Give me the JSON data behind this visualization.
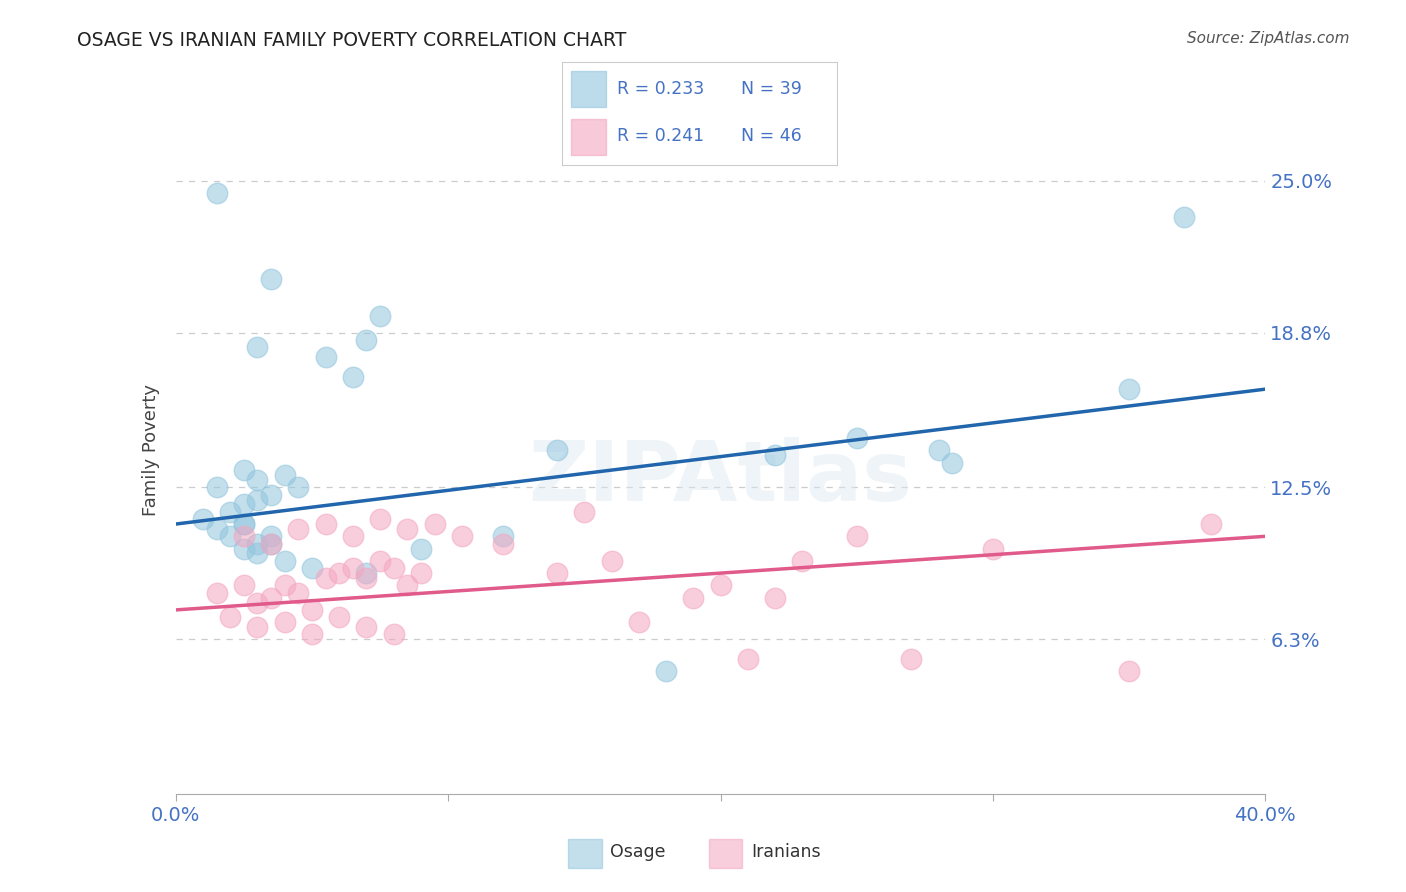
{
  "title": "OSAGE VS IRANIAN FAMILY POVERTY CORRELATION CHART",
  "source": "Source: ZipAtlas.com",
  "ylabel": "Family Poverty",
  "yticks": [
    6.3,
    12.5,
    18.8,
    25.0
  ],
  "ytick_labels": [
    "6.3%",
    "12.5%",
    "18.8%",
    "25.0%"
  ],
  "xlim": [
    0.0,
    40.0
  ],
  "ylim": [
    0.0,
    28.0
  ],
  "legend_r1": "R = 0.233",
  "legend_n1": "N = 39",
  "legend_r2": "R = 0.241",
  "legend_n2": "N = 46",
  "legend_label1": "Osage",
  "legend_label2": "Iranians",
  "blue_color": "#92c5de",
  "pink_color": "#f4a6c0",
  "blue_line_color": "#2166ac",
  "pink_line_color": "#e05a8a",
  "background": "#ffffff",
  "osage_x": [
    1.5,
    3.5,
    7.5,
    3.0,
    5.5,
    7.0,
    6.5,
    2.5,
    3.0,
    4.0,
    4.5,
    3.5,
    2.5,
    3.0,
    1.5,
    2.0,
    2.5,
    1.0,
    1.5,
    2.0,
    2.5,
    3.0,
    3.5,
    2.5,
    3.0,
    3.5,
    4.0,
    5.0,
    28.0,
    28.5,
    35.0,
    37.0,
    22.0,
    25.0,
    14.0,
    7.0,
    9.0,
    12.0,
    18.0
  ],
  "osage_y": [
    24.5,
    21.0,
    19.5,
    18.2,
    17.8,
    18.5,
    17.0,
    13.2,
    12.8,
    13.0,
    12.5,
    12.2,
    11.8,
    12.0,
    12.5,
    11.5,
    11.0,
    11.2,
    10.8,
    10.5,
    11.0,
    10.2,
    10.5,
    10.0,
    9.8,
    10.2,
    9.5,
    9.2,
    14.0,
    13.5,
    16.5,
    23.5,
    13.8,
    14.5,
    14.0,
    9.0,
    10.0,
    10.5,
    5.0
  ],
  "iranian_x": [
    1.5,
    2.5,
    3.0,
    3.5,
    4.0,
    4.5,
    5.0,
    5.5,
    6.0,
    6.5,
    7.0,
    7.5,
    8.0,
    8.5,
    9.0,
    2.0,
    3.0,
    4.0,
    5.0,
    6.0,
    7.0,
    8.0,
    2.5,
    3.5,
    4.5,
    5.5,
    6.5,
    7.5,
    8.5,
    9.5,
    10.5,
    12.0,
    15.0,
    20.0,
    22.0,
    16.0,
    19.0,
    23.0,
    25.0,
    30.0,
    35.0,
    38.0,
    14.0,
    17.0,
    21.0,
    27.0
  ],
  "iranian_y": [
    8.2,
    8.5,
    7.8,
    8.0,
    8.5,
    8.2,
    7.5,
    8.8,
    9.0,
    9.2,
    8.8,
    9.5,
    9.2,
    8.5,
    9.0,
    7.2,
    6.8,
    7.0,
    6.5,
    7.2,
    6.8,
    6.5,
    10.5,
    10.2,
    10.8,
    11.0,
    10.5,
    11.2,
    10.8,
    11.0,
    10.5,
    10.2,
    11.5,
    8.5,
    8.0,
    9.5,
    8.0,
    9.5,
    10.5,
    10.0,
    5.0,
    11.0,
    9.0,
    7.0,
    5.5,
    5.5
  ]
}
